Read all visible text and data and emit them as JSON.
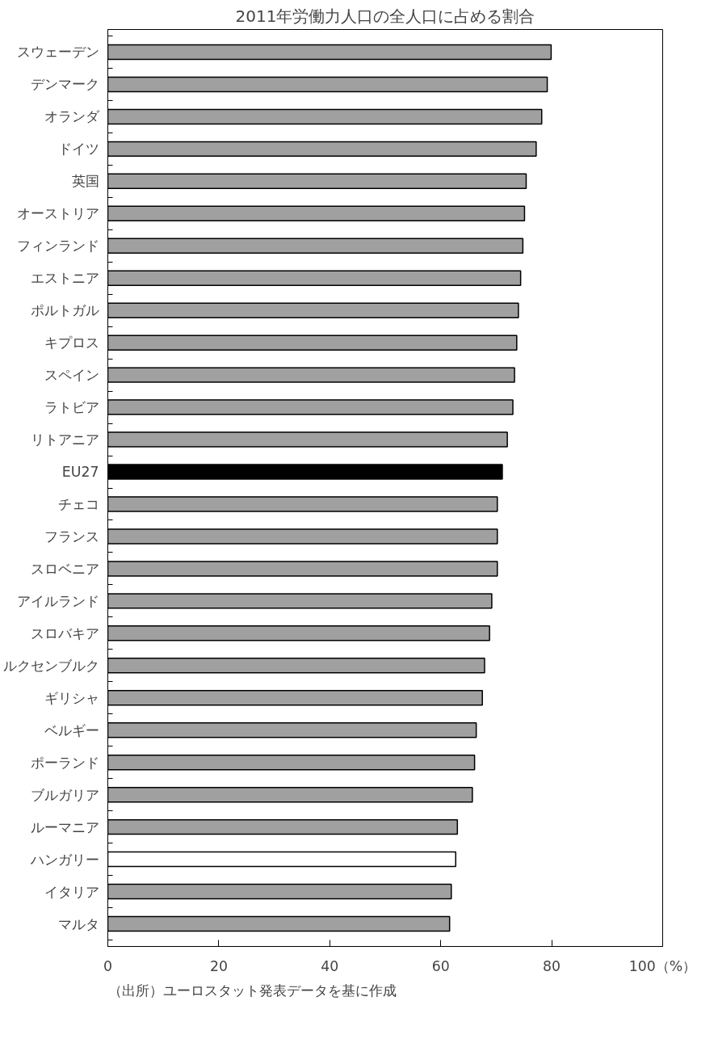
{
  "chart_data": {
    "type": "bar",
    "orientation": "horizontal",
    "title": "2011年労働力人口の全人口に占める割合",
    "categories": [
      "スウェーデン",
      "デンマーク",
      "オランダ",
      "ドイツ",
      "英国",
      "オーストリア",
      "フィンランド",
      "エストニア",
      "ポルトガル",
      "キプロス",
      "スペイン",
      "ラトビア",
      "リトアニア",
      "EU27",
      "チェコ",
      "フランス",
      "スロベニア",
      "アイルランド",
      "スロバキア",
      "ルクセンブルク",
      "ギリシャ",
      "ベルギー",
      "ポーランド",
      "ブルガリア",
      "ルーマニア",
      "ハンガリー",
      "イタリア",
      "マルタ"
    ],
    "values": [
      79.9,
      79.2,
      78.2,
      77.2,
      75.4,
      75.1,
      74.8,
      74.4,
      74.0,
      73.7,
      73.3,
      73.0,
      72.0,
      71.1,
      70.2,
      70.2,
      70.2,
      69.2,
      68.8,
      67.9,
      67.5,
      66.4,
      66.1,
      65.7,
      63.0,
      62.7,
      61.9,
      61.6
    ],
    "colors": [
      "#a0a0a0",
      "#a0a0a0",
      "#a0a0a0",
      "#a0a0a0",
      "#a0a0a0",
      "#a0a0a0",
      "#a0a0a0",
      "#a0a0a0",
      "#a0a0a0",
      "#a0a0a0",
      "#a0a0a0",
      "#a0a0a0",
      "#a0a0a0",
      "#000000",
      "#a0a0a0",
      "#a0a0a0",
      "#a0a0a0",
      "#a0a0a0",
      "#a0a0a0",
      "#a0a0a0",
      "#a0a0a0",
      "#a0a0a0",
      "#a0a0a0",
      "#a0a0a0",
      "#a0a0a0",
      "#ffffff",
      "#a0a0a0",
      "#a0a0a0"
    ],
    "xlim": [
      0,
      100
    ],
    "xticks": [
      0,
      20,
      40,
      60,
      80,
      {
        "value": 100,
        "label": "100（%）"
      }
    ],
    "grid": false,
    "annotations": [
      "（出所）ユーロスタット発表データを基に作成"
    ]
  }
}
